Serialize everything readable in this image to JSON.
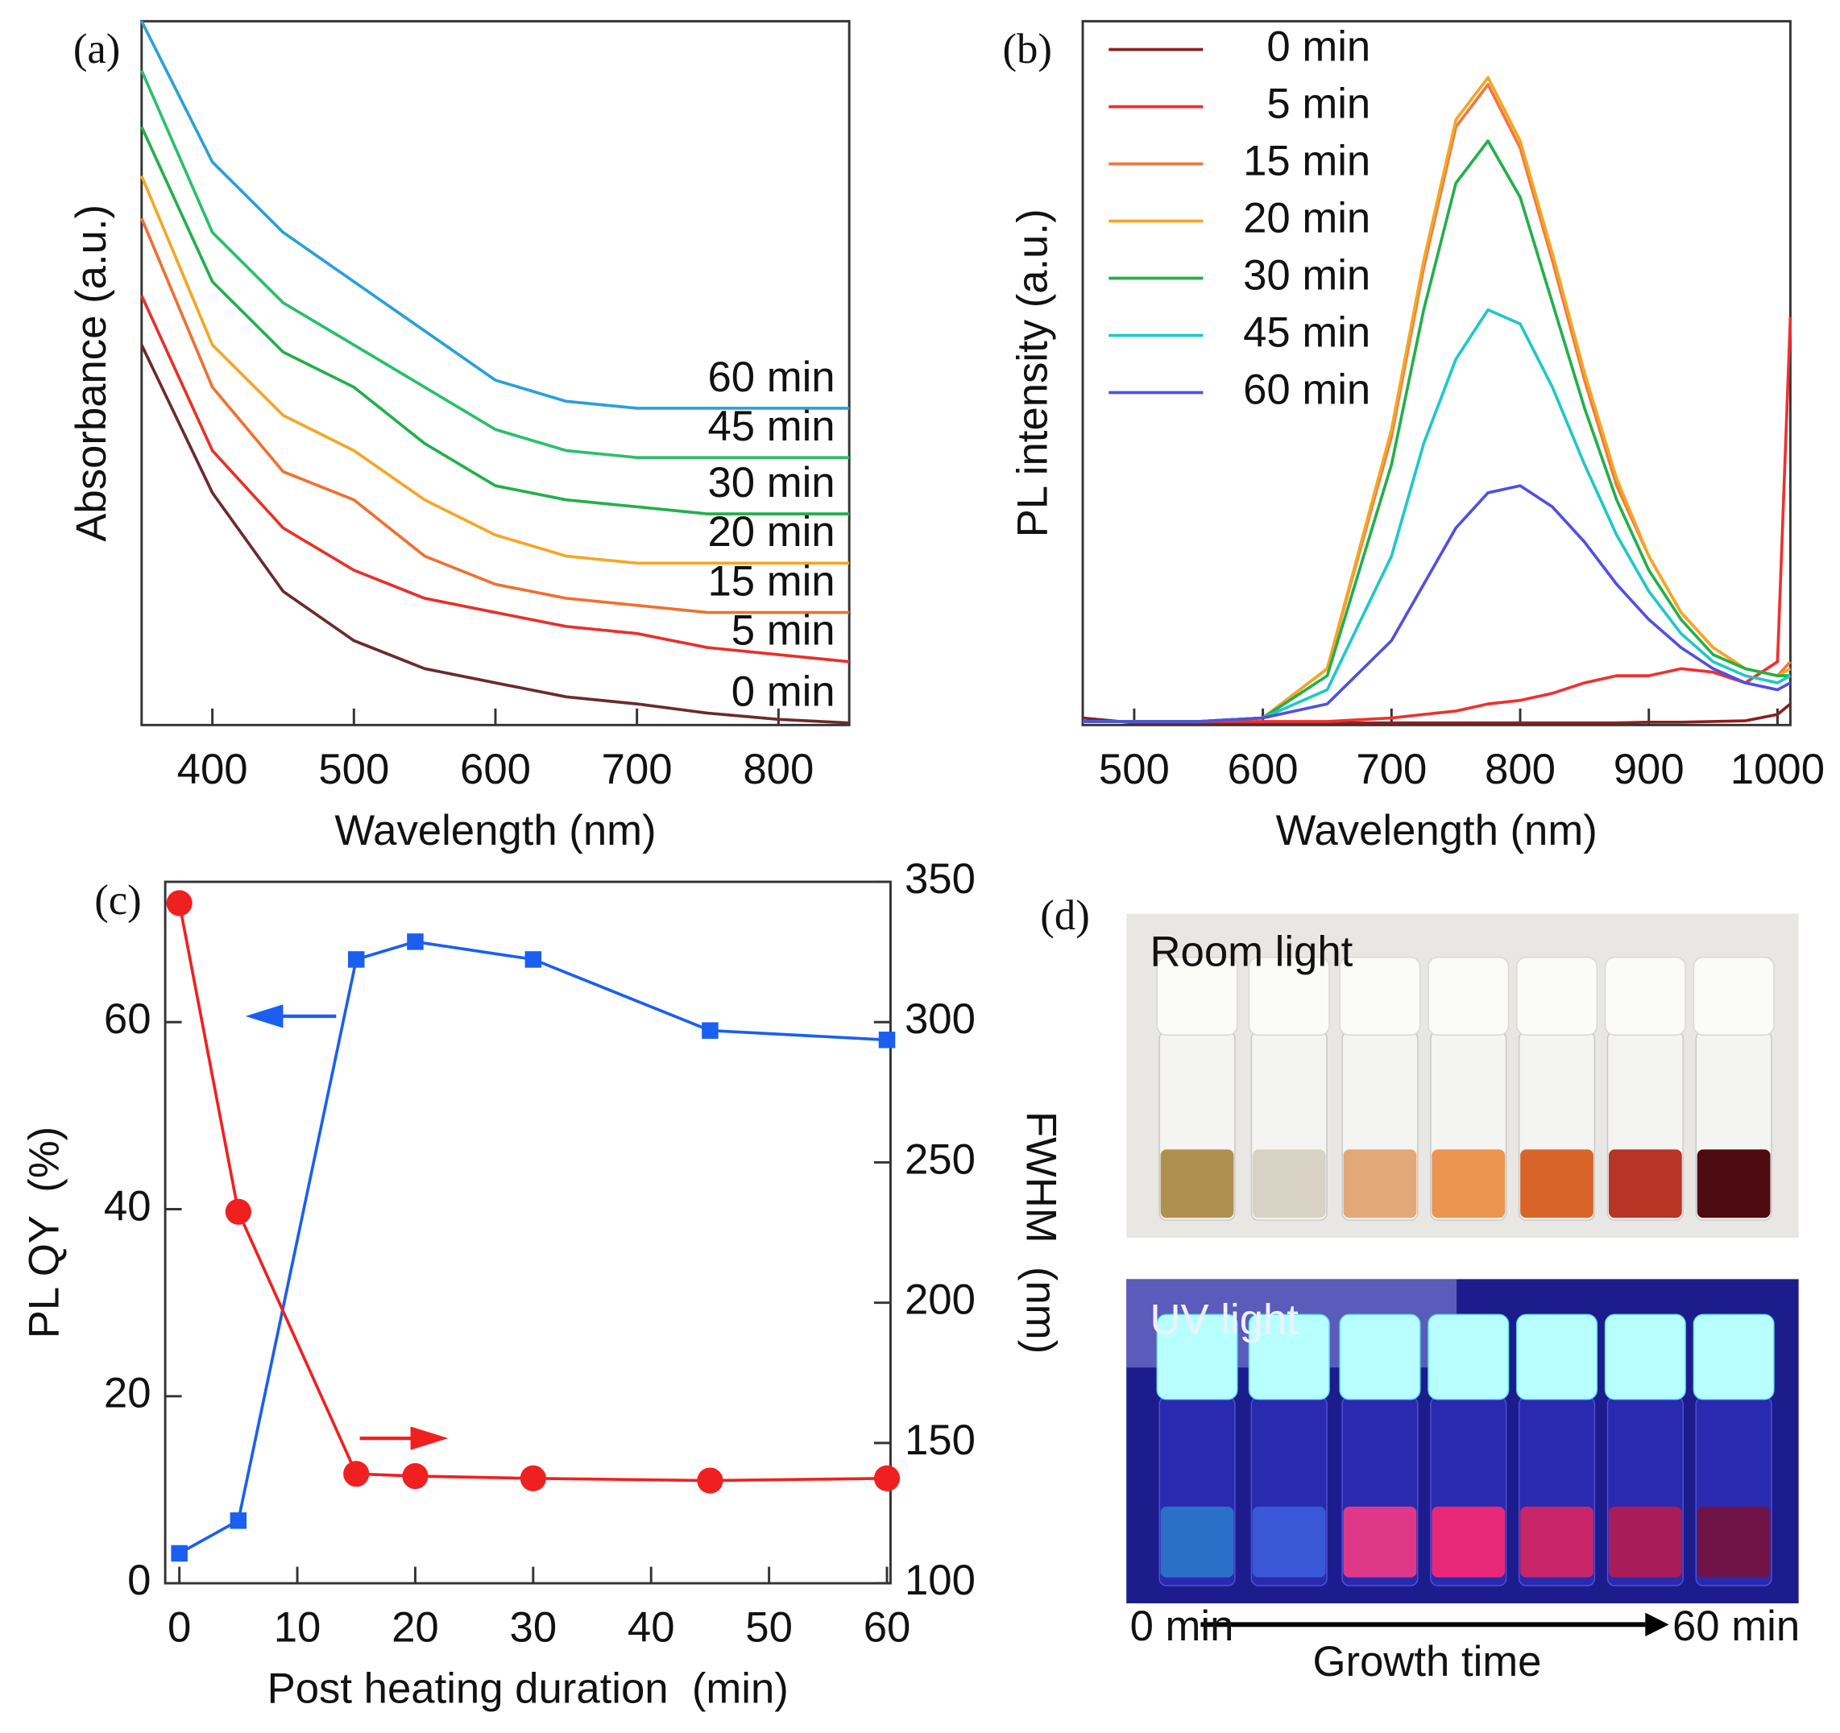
{
  "chart_data": [
    {
      "type": "line",
      "label": "(a)",
      "xlabel": "Wavelength (nm)",
      "ylabel": "Absorbance (a.u.)",
      "legend": "inline",
      "x": [
        350,
        400,
        450,
        500,
        550,
        600,
        650,
        700,
        750,
        800,
        850
      ],
      "xlim": [
        350,
        850
      ],
      "xticks": [
        400,
        500,
        600,
        700,
        800
      ],
      "ylim": [
        0,
        1
      ],
      "series": [
        {
          "name": "0 min",
          "color": "#6b2b2b",
          "values": [
            0.54,
            0.33,
            0.19,
            0.12,
            0.08,
            0.06,
            0.04,
            0.03,
            0.017,
            0.008,
            0.003
          ]
        },
        {
          "name": "5 min",
          "color": "#e8302a",
          "values": [
            0.61,
            0.39,
            0.28,
            0.22,
            0.18,
            0.16,
            0.14,
            0.13,
            0.11,
            0.1,
            0.09
          ]
        },
        {
          "name": "15 min",
          "color": "#f07030",
          "values": [
            0.72,
            0.48,
            0.36,
            0.32,
            0.24,
            0.2,
            0.18,
            0.17,
            0.16,
            0.16,
            0.16
          ]
        },
        {
          "name": "20 min",
          "color": "#f5a623",
          "values": [
            0.78,
            0.54,
            0.44,
            0.39,
            0.32,
            0.27,
            0.24,
            0.23,
            0.23,
            0.23,
            0.23
          ]
        },
        {
          "name": "30 min",
          "color": "#22b04b",
          "values": [
            0.85,
            0.63,
            0.53,
            0.48,
            0.4,
            0.34,
            0.32,
            0.31,
            0.3,
            0.3,
            0.3
          ]
        },
        {
          "name": "45 min",
          "color": "#2bbf6a",
          "values": [
            0.93,
            0.7,
            0.6,
            0.54,
            0.48,
            0.42,
            0.39,
            0.38,
            0.38,
            0.38,
            0.38
          ]
        },
        {
          "name": "60 min",
          "color": "#2aa0d8",
          "values": [
            1.0,
            0.8,
            0.7,
            0.63,
            0.56,
            0.49,
            0.46,
            0.45,
            0.45,
            0.45,
            0.45
          ]
        }
      ]
    },
    {
      "type": "line",
      "label": "(b)",
      "xlabel": "Wavelength (nm)",
      "ylabel": "PL intensity (a.u.)",
      "legend": "upper left",
      "x": [
        460,
        500,
        550,
        600,
        650,
        700,
        725,
        750,
        775,
        800,
        825,
        850,
        875,
        900,
        925,
        950,
        975,
        1000,
        1010
      ],
      "xlim": [
        460,
        1010
      ],
      "xticks": [
        500,
        600,
        700,
        800,
        900,
        1000
      ],
      "ylim": [
        0,
        1
      ],
      "series": [
        {
          "name": "0 min",
          "color": "#8b2020",
          "values": [
            0.01,
            0.003,
            0.003,
            0.003,
            0.003,
            0.003,
            0.003,
            0.003,
            0.003,
            0.003,
            0.003,
            0.003,
            0.003,
            0.004,
            0.004,
            0.005,
            0.006,
            0.015,
            0.03
          ]
        },
        {
          "name": "5 min",
          "color": "#f03030",
          "values": [
            0.005,
            0.005,
            0.005,
            0.005,
            0.005,
            0.01,
            0.015,
            0.02,
            0.03,
            0.035,
            0.045,
            0.06,
            0.07,
            0.07,
            0.08,
            0.075,
            0.06,
            0.09,
            0.58
          ]
        },
        {
          "name": "15 min",
          "color": "#f07840",
          "values": [
            0.005,
            0.005,
            0.005,
            0.01,
            0.08,
            0.41,
            0.65,
            0.85,
            0.91,
            0.82,
            0.66,
            0.49,
            0.34,
            0.24,
            0.16,
            0.11,
            0.08,
            0.07,
            0.09
          ]
        },
        {
          "name": "20 min",
          "color": "#f5a623",
          "values": [
            0.005,
            0.005,
            0.005,
            0.01,
            0.08,
            0.42,
            0.66,
            0.86,
            0.92,
            0.83,
            0.67,
            0.5,
            0.35,
            0.24,
            0.16,
            0.11,
            0.08,
            0.07,
            0.08
          ]
        },
        {
          "name": "30 min",
          "color": "#22b04b",
          "values": [
            0.005,
            0.005,
            0.005,
            0.01,
            0.07,
            0.37,
            0.59,
            0.77,
            0.83,
            0.75,
            0.6,
            0.45,
            0.32,
            0.22,
            0.15,
            0.1,
            0.08,
            0.07,
            0.07
          ]
        },
        {
          "name": "45 min",
          "color": "#20c8c8",
          "values": [
            0.005,
            0.005,
            0.005,
            0.01,
            0.05,
            0.24,
            0.4,
            0.52,
            0.59,
            0.57,
            0.48,
            0.37,
            0.27,
            0.19,
            0.13,
            0.09,
            0.07,
            0.06,
            0.07
          ]
        },
        {
          "name": "60 min",
          "color": "#5050e0",
          "values": [
            0.005,
            0.005,
            0.005,
            0.01,
            0.03,
            0.12,
            0.2,
            0.28,
            0.33,
            0.34,
            0.31,
            0.26,
            0.2,
            0.15,
            0.11,
            0.08,
            0.06,
            0.05,
            0.06
          ]
        }
      ]
    },
    {
      "type": "line",
      "label": "(c)",
      "xlabel": "Post heating duration  (min)",
      "ylabel": "PL QY  (%)",
      "y2label": "FWHM  (nm)",
      "x": [
        0,
        5,
        15,
        20,
        30,
        45,
        60
      ],
      "xlim": [
        -1.2,
        60.3
      ],
      "xticks": [
        0,
        10,
        20,
        30,
        40,
        50,
        60
      ],
      "ylim": [
        0,
        75
      ],
      "yticks": [
        0,
        20,
        40,
        60
      ],
      "y2lim": [
        100,
        350
      ],
      "y2ticks": [
        100,
        150,
        200,
        250,
        300,
        350
      ],
      "series": [
        {
          "name": "PL QY",
          "color": "#1a5ff0",
          "marker": "square",
          "values": [
            3.2,
            6.7,
            66.7,
            68.6,
            66.7,
            59.1,
            58.1
          ]
        },
        {
          "name": "FWHM",
          "color": "#f02020",
          "marker": "circle",
          "axis": "y2",
          "values": [
            342.4,
            232.4,
            139,
            138.2,
            137.4,
            136.6,
            137.4
          ]
        }
      ]
    }
  ],
  "photo_panel": {
    "label": "(d)",
    "top_caption": "Room light",
    "bottom_caption": "UV light",
    "start": "0 min",
    "end": "60 min",
    "axis_label": "Growth time"
  }
}
